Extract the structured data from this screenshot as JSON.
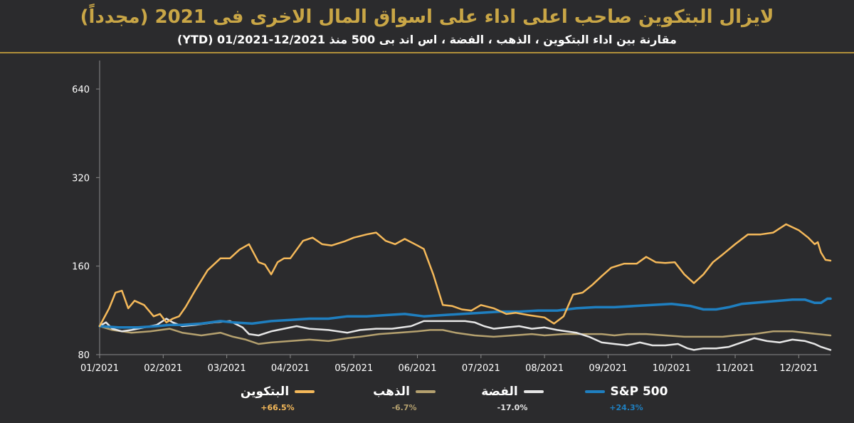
{
  "header": {
    "title": "لايزال البتكوين صاحب اعلى اداء على اسواق المال الاخرى فى 2021 (مجدداً)",
    "subtitle": "مقارنة بين اداء البتكوين ، الذهب ، الفضة ، اس اند بى 500 منذ 12/2021-01/2021 (YTD)"
  },
  "chart_data": {
    "type": "line",
    "title": "لايزال البتكوين صاحب اعلى اداء على اسواق المال الاخرى فى 2021 (مجدداً)",
    "xlabel": "",
    "ylabel": "",
    "yscale": "log",
    "ylim": [
      80,
      800
    ],
    "yticks": [
      80,
      160,
      320,
      640
    ],
    "x_range": [
      0,
      11.5
    ],
    "categories": [
      "01/2021",
      "02/2021",
      "03/2021",
      "04/2021",
      "05/2021",
      "06/2021",
      "07/2021",
      "08/2021",
      "09/2021",
      "10/2021",
      "11/2021",
      "12/2021"
    ],
    "series": [
      {
        "name": "البتكوين",
        "color": "#f5b95a",
        "change": "+66.5%",
        "points": [
          [
            0,
            100
          ],
          [
            0.15,
            115
          ],
          [
            0.25,
            130
          ],
          [
            0.35,
            132
          ],
          [
            0.45,
            115
          ],
          [
            0.55,
            122
          ],
          [
            0.7,
            118
          ],
          [
            0.85,
            108
          ],
          [
            0.95,
            110
          ],
          [
            1.05,
            103
          ],
          [
            1.15,
            106
          ],
          [
            1.25,
            108
          ],
          [
            1.35,
            116
          ],
          [
            1.5,
            132
          ],
          [
            1.7,
            155
          ],
          [
            1.9,
            170
          ],
          [
            2.05,
            170
          ],
          [
            2.2,
            182
          ],
          [
            2.35,
            190
          ],
          [
            2.5,
            165
          ],
          [
            2.6,
            162
          ],
          [
            2.7,
            150
          ],
          [
            2.8,
            165
          ],
          [
            2.9,
            170
          ],
          [
            3.0,
            170
          ],
          [
            3.2,
            195
          ],
          [
            3.35,
            200
          ],
          [
            3.5,
            190
          ],
          [
            3.65,
            188
          ],
          [
            3.85,
            194
          ],
          [
            4.0,
            200
          ],
          [
            4.2,
            205
          ],
          [
            4.35,
            208
          ],
          [
            4.5,
            195
          ],
          [
            4.65,
            190
          ],
          [
            4.8,
            198
          ],
          [
            5.0,
            188
          ],
          [
            5.1,
            183
          ],
          [
            5.25,
            150
          ],
          [
            5.4,
            118
          ],
          [
            5.55,
            117
          ],
          [
            5.7,
            114
          ],
          [
            5.85,
            113
          ],
          [
            6.0,
            118
          ],
          [
            6.2,
            115
          ],
          [
            6.4,
            110
          ],
          [
            6.55,
            111
          ],
          [
            6.75,
            109
          ],
          [
            7.0,
            107
          ],
          [
            7.15,
            102
          ],
          [
            7.3,
            108
          ],
          [
            7.45,
            128
          ],
          [
            7.6,
            130
          ],
          [
            7.75,
            138
          ],
          [
            7.9,
            148
          ],
          [
            8.05,
            158
          ],
          [
            8.25,
            163
          ],
          [
            8.45,
            163
          ],
          [
            8.6,
            172
          ],
          [
            8.75,
            165
          ],
          [
            8.9,
            164
          ],
          [
            9.05,
            165
          ],
          [
            9.2,
            150
          ],
          [
            9.35,
            140
          ],
          [
            9.5,
            150
          ],
          [
            9.65,
            165
          ],
          [
            9.8,
            175
          ],
          [
            10.0,
            190
          ],
          [
            10.2,
            205
          ],
          [
            10.4,
            205
          ],
          [
            10.6,
            208
          ],
          [
            10.8,
            222
          ],
          [
            11.0,
            212
          ],
          [
            11.15,
            200
          ],
          [
            11.25,
            190
          ],
          [
            11.3,
            193
          ],
          [
            11.35,
            178
          ],
          [
            11.42,
            168
          ],
          [
            11.5,
            167
          ]
        ]
      },
      {
        "name": "الذهب",
        "color": "#b5a16f",
        "change": "-6.7%",
        "points": [
          [
            0,
            100
          ],
          [
            0.2,
            97
          ],
          [
            0.5,
            95
          ],
          [
            0.8,
            96
          ],
          [
            1.1,
            98
          ],
          [
            1.3,
            95
          ],
          [
            1.6,
            93
          ],
          [
            1.9,
            95
          ],
          [
            2.1,
            92
          ],
          [
            2.3,
            90
          ],
          [
            2.5,
            87
          ],
          [
            2.7,
            88
          ],
          [
            3.0,
            89
          ],
          [
            3.3,
            90
          ],
          [
            3.6,
            89
          ],
          [
            3.9,
            91
          ],
          [
            4.1,
            92
          ],
          [
            4.4,
            94
          ],
          [
            4.7,
            95
          ],
          [
            5.0,
            96
          ],
          [
            5.2,
            97
          ],
          [
            5.4,
            97
          ],
          [
            5.6,
            95
          ],
          [
            5.9,
            93
          ],
          [
            6.2,
            92
          ],
          [
            6.5,
            93
          ],
          [
            6.8,
            94
          ],
          [
            7.0,
            93
          ],
          [
            7.3,
            94
          ],
          [
            7.6,
            94
          ],
          [
            7.9,
            94
          ],
          [
            8.1,
            93
          ],
          [
            8.3,
            94
          ],
          [
            8.6,
            94
          ],
          [
            8.9,
            93
          ],
          [
            9.2,
            92
          ],
          [
            9.5,
            92
          ],
          [
            9.8,
            92
          ],
          [
            10.0,
            93
          ],
          [
            10.3,
            94
          ],
          [
            10.6,
            96
          ],
          [
            10.9,
            96
          ],
          [
            11.1,
            95
          ],
          [
            11.3,
            94
          ],
          [
            11.5,
            93
          ]
        ]
      },
      {
        "name": "الفضة",
        "color": "#e6e6e6",
        "change": "-17.0%",
        "points": [
          [
            0,
            100
          ],
          [
            0.1,
            103
          ],
          [
            0.2,
            98
          ],
          [
            0.35,
            96
          ],
          [
            0.5,
            97
          ],
          [
            0.7,
            99
          ],
          [
            0.9,
            101
          ],
          [
            1.05,
            106
          ],
          [
            1.15,
            103
          ],
          [
            1.3,
            100
          ],
          [
            1.5,
            101
          ],
          [
            1.8,
            103
          ],
          [
            2.05,
            104
          ],
          [
            2.25,
            99
          ],
          [
            2.35,
            94
          ],
          [
            2.5,
            93
          ],
          [
            2.7,
            96
          ],
          [
            2.9,
            98
          ],
          [
            3.1,
            100
          ],
          [
            3.3,
            98
          ],
          [
            3.6,
            97
          ],
          [
            3.9,
            95
          ],
          [
            4.1,
            97
          ],
          [
            4.35,
            98
          ],
          [
            4.6,
            98
          ],
          [
            4.9,
            100
          ],
          [
            5.1,
            104
          ],
          [
            5.3,
            104
          ],
          [
            5.55,
            104
          ],
          [
            5.75,
            104
          ],
          [
            5.9,
            103
          ],
          [
            6.05,
            100
          ],
          [
            6.2,
            98
          ],
          [
            6.4,
            99
          ],
          [
            6.6,
            100
          ],
          [
            6.8,
            98
          ],
          [
            7.0,
            99
          ],
          [
            7.2,
            97
          ],
          [
            7.5,
            95
          ],
          [
            7.7,
            92
          ],
          [
            7.9,
            88
          ],
          [
            8.1,
            87
          ],
          [
            8.3,
            86
          ],
          [
            8.5,
            88
          ],
          [
            8.7,
            86
          ],
          [
            8.9,
            86
          ],
          [
            9.1,
            87
          ],
          [
            9.25,
            84
          ],
          [
            9.35,
            83
          ],
          [
            9.5,
            84
          ],
          [
            9.7,
            84
          ],
          [
            9.9,
            85
          ],
          [
            10.1,
            88
          ],
          [
            10.3,
            91
          ],
          [
            10.5,
            89
          ],
          [
            10.7,
            88
          ],
          [
            10.9,
            90
          ],
          [
            11.1,
            89
          ],
          [
            11.25,
            87
          ],
          [
            11.35,
            85
          ],
          [
            11.5,
            83
          ]
        ]
      },
      {
        "name": "S&P 500",
        "color": "#1f7fc0",
        "change": "+24.3%",
        "points": [
          [
            0,
            100
          ],
          [
            0.3,
            99
          ],
          [
            0.6,
            99
          ],
          [
            0.9,
            100
          ],
          [
            1.1,
            101
          ],
          [
            1.3,
            101
          ],
          [
            1.6,
            102
          ],
          [
            1.9,
            104
          ],
          [
            2.1,
            103
          ],
          [
            2.4,
            102
          ],
          [
            2.7,
            104
          ],
          [
            3.0,
            105
          ],
          [
            3.3,
            106
          ],
          [
            3.6,
            106
          ],
          [
            3.9,
            108
          ],
          [
            4.2,
            108
          ],
          [
            4.5,
            109
          ],
          [
            4.8,
            110
          ],
          [
            5.1,
            108
          ],
          [
            5.4,
            109
          ],
          [
            5.7,
            110
          ],
          [
            6.0,
            111
          ],
          [
            6.3,
            112
          ],
          [
            6.6,
            112
          ],
          [
            6.9,
            113
          ],
          [
            7.2,
            113
          ],
          [
            7.5,
            115
          ],
          [
            7.8,
            116
          ],
          [
            8.1,
            116
          ],
          [
            8.4,
            117
          ],
          [
            8.7,
            118
          ],
          [
            9.0,
            119
          ],
          [
            9.3,
            117
          ],
          [
            9.5,
            114
          ],
          [
            9.7,
            114
          ],
          [
            9.9,
            116
          ],
          [
            10.1,
            119
          ],
          [
            10.3,
            120
          ],
          [
            10.5,
            121
          ],
          [
            10.7,
            122
          ],
          [
            10.9,
            123
          ],
          [
            11.1,
            123
          ],
          [
            11.25,
            120
          ],
          [
            11.35,
            120
          ],
          [
            11.45,
            124
          ],
          [
            11.5,
            124
          ]
        ]
      }
    ]
  }
}
